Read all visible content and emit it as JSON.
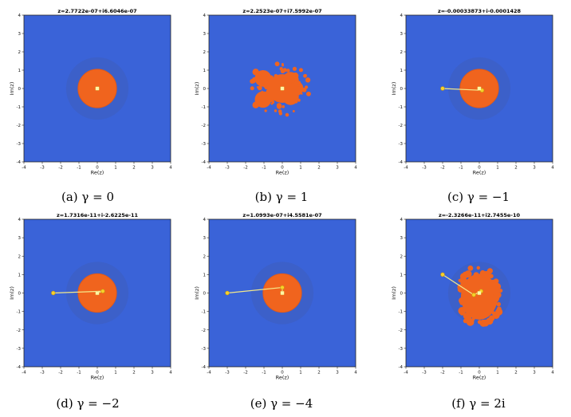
{
  "figure": {
    "panels": [
      {
        "id": "a",
        "title": "z=2.7722e-07+i6.6046e-07",
        "xlabel": "Re(z)",
        "ylabel": "Im(z)",
        "caption_label": "(a)",
        "caption_math": "γ = 0",
        "orbit": [
          [
            0,
            0
          ]
        ],
        "orbit_line": false,
        "shape": "disk",
        "fixed_point": [
          0,
          0
        ]
      },
      {
        "id": "b",
        "title": "z=2.2523e-07+i7.5992e-07",
        "xlabel": "Re(z)",
        "ylabel": "Im(z)",
        "caption_label": "(b)",
        "caption_math": "γ = 1",
        "orbit": [
          [
            0,
            0
          ]
        ],
        "orbit_line": false,
        "shape": "fractal",
        "fixed_point": [
          0,
          0
        ]
      },
      {
        "id": "c",
        "title": "z=-0.00033873+i-0.0001428",
        "xlabel": "Re(z)",
        "ylabel": "Im(z)",
        "caption_label": "(c)",
        "caption_math": "γ = −1",
        "orbit": [
          [
            -2,
            0
          ],
          [
            0.15,
            -0.1
          ],
          [
            0,
            0
          ]
        ],
        "orbit_line": true,
        "shape": "disk",
        "fixed_point": [
          0,
          0
        ]
      },
      {
        "id": "d",
        "title": "z=1.7316e-11+i-2.6225e-11",
        "xlabel": "Re(z)",
        "ylabel": "Im(z)",
        "caption_label": "(d)",
        "caption_math": "γ = −2",
        "orbit": [
          [
            -2.4,
            0
          ],
          [
            0.3,
            0.1
          ],
          [
            0,
            0
          ]
        ],
        "orbit_line": true,
        "shape": "disk",
        "fixed_point": [
          0,
          0
        ]
      },
      {
        "id": "e",
        "title": "z=1.0993e-07+i4.5581e-07",
        "xlabel": "Re(z)",
        "ylabel": "Im(z)",
        "caption_label": "(e)",
        "caption_math": "γ = −4",
        "orbit": [
          [
            -3,
            0
          ],
          [
            0,
            0.3
          ],
          [
            0,
            0
          ]
        ],
        "orbit_line": true,
        "shape": "disk",
        "fixed_point": [
          0,
          0
        ]
      },
      {
        "id": "f",
        "title": "z=-2.3266e-11+i2.7455e-10",
        "xlabel": "Re(z)",
        "ylabel": "Im(z)",
        "caption_label": "(f)",
        "caption_math": "γ = 2i",
        "orbit": [
          [
            -2,
            1
          ],
          [
            -0.3,
            -0.1
          ],
          [
            0.1,
            0.1
          ],
          [
            0,
            0
          ]
        ],
        "orbit_line": true,
        "shape": "blob",
        "fixed_point": [
          0,
          0
        ]
      }
    ],
    "axis": {
      "xlim": [
        -4,
        4
      ],
      "ylim": [
        -4,
        4
      ],
      "ticks": [
        -4,
        -3,
        -2,
        -1,
        0,
        1,
        2,
        3,
        4
      ]
    },
    "colors": {
      "background": "#3a63d8",
      "halo": "#3d5fc6",
      "basin": "#f0641e",
      "basin_edge": "#e25a18",
      "orbit": "#f7d12a",
      "orbit_line": "#f4e98a"
    }
  }
}
